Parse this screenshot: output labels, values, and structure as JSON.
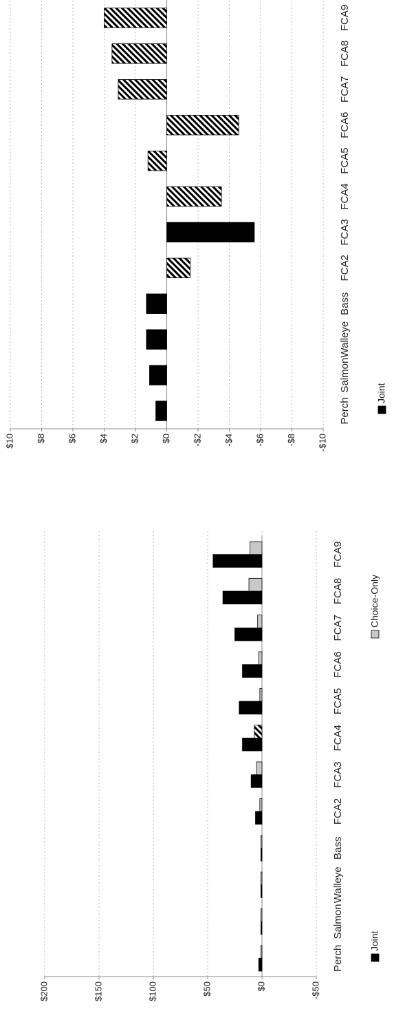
{
  "chart_data": [
    {
      "type": "bar",
      "categories": [
        "Perch",
        "Salmon",
        "Walleye",
        "Bass",
        "FCA2",
        "FCA3",
        "FCA4",
        "FCA5",
        "FCA6",
        "FCA7",
        "FCA8",
        "FCA9"
      ],
      "series": [
        {
          "name": "Joint",
          "color": "#000000",
          "values": [
            0.7,
            1.1,
            1.3,
            1.3,
            -1.5,
            -5.6,
            -3.5,
            1.2,
            -4.6,
            3.1,
            3.5,
            4.0
          ],
          "patterns": [
            "solid",
            "solid",
            "solid",
            "solid",
            "hatched",
            "solid",
            "hatched",
            "hatched",
            "hatched",
            "hatched",
            "hatched",
            "hatched"
          ]
        }
      ],
      "ylim": [
        -10,
        10
      ],
      "yticks": [
        {
          "value": 10,
          "label": "$10"
        },
        {
          "value": 8,
          "label": "$8"
        },
        {
          "value": 6,
          "label": "$6"
        },
        {
          "value": 4,
          "label": "$4"
        },
        {
          "value": 2,
          "label": "$2"
        },
        {
          "value": 0,
          "label": "$0"
        },
        {
          "value": -2,
          "label": "-$2"
        },
        {
          "value": -4,
          "label": "-$4"
        },
        {
          "value": -6,
          "label": "-$6"
        },
        {
          "value": -8,
          "label": "-$8"
        },
        {
          "value": -10,
          "label": "-$10"
        }
      ],
      "grid": true
    },
    {
      "type": "bar",
      "categories": [
        "Perch",
        "Salmon",
        "Walleye",
        "Bass",
        "FCA2",
        "FCA3",
        "FCA4",
        "FCA5",
        "FCA6",
        "FCA7",
        "FCA8",
        "FCA9"
      ],
      "series": [
        {
          "name": "Joint",
          "color": "#000000",
          "values": [
            3,
            1,
            1,
            1,
            6,
            10,
            18,
            21,
            18,
            25,
            36,
            45
          ]
        },
        {
          "name": "Choice-Only",
          "color": "#c8c8c8",
          "values": [
            1,
            1,
            1,
            1,
            2,
            5,
            7,
            2,
            3,
            4,
            12,
            11
          ],
          "patterns": [
            "solid",
            "solid",
            "solid",
            "solid",
            "solid",
            "solid",
            "hatched",
            "solid",
            "solid",
            "solid",
            "solid",
            "solid"
          ]
        }
      ],
      "ylim": [
        -50,
        200
      ],
      "yticks": [
        {
          "value": 200,
          "label": "$200"
        },
        {
          "value": 150,
          "label": "$150"
        },
        {
          "value": 100,
          "label": "$100"
        },
        {
          "value": 50,
          "label": "$50"
        },
        {
          "value": 0,
          "label": "$0"
        },
        {
          "value": -50,
          "label": "-$50"
        }
      ],
      "grid": true
    }
  ]
}
